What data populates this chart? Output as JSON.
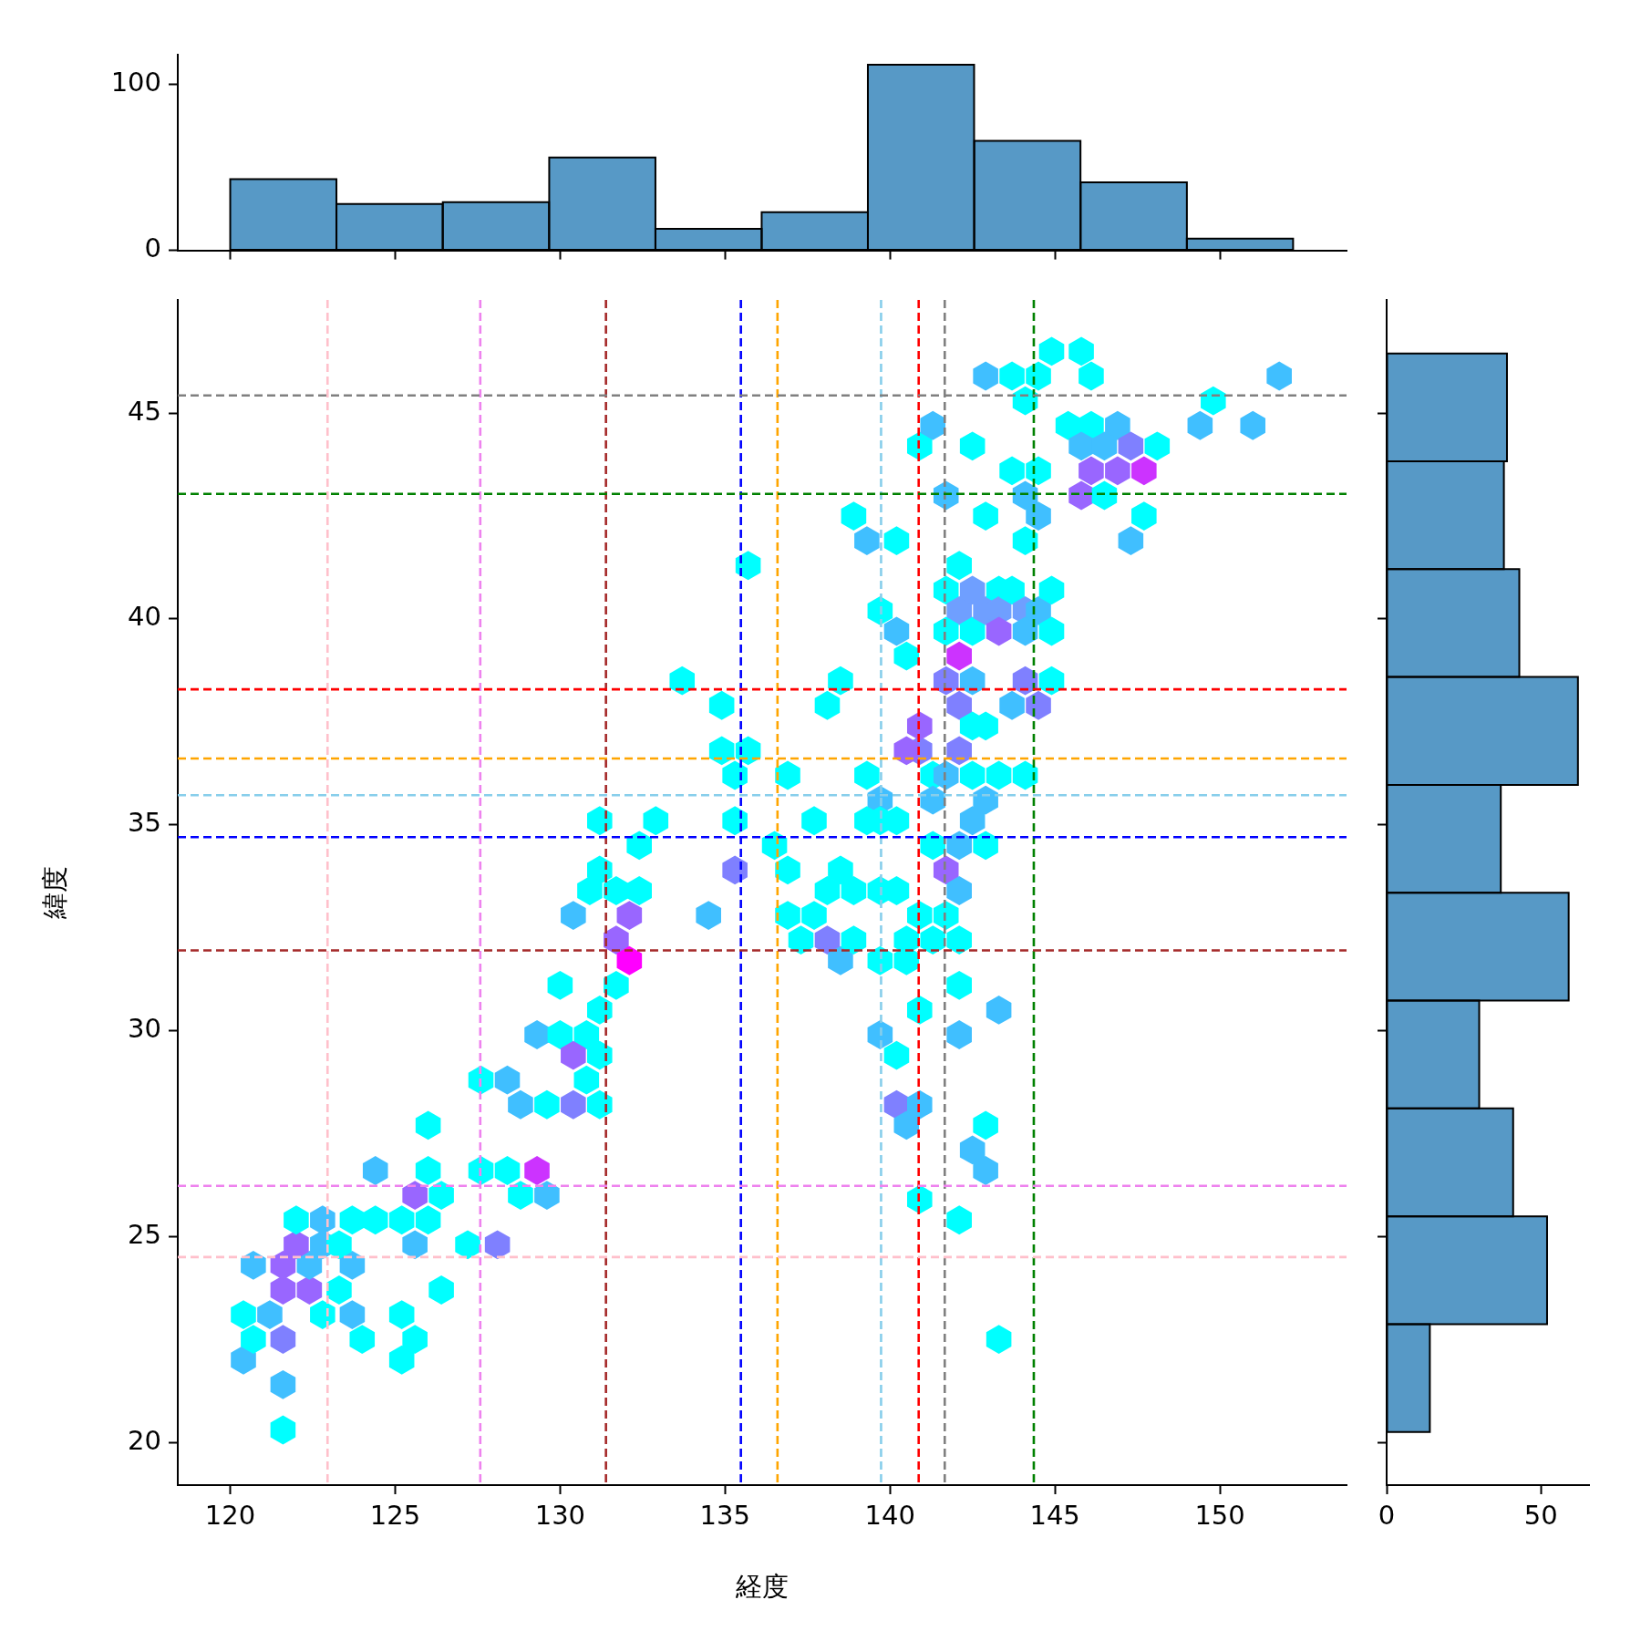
{
  "chart_data": [
    {
      "type": "histogram",
      "bins": [
        120.0,
        123.22,
        126.44,
        129.67,
        132.89,
        136.11,
        139.33,
        142.55,
        145.78,
        149.0,
        152.22
      ],
      "values": [
        43,
        28,
        29,
        56,
        13,
        23,
        112,
        66,
        41,
        7
      ],
      "color": "#5799c6",
      "xlim": [
        118.41,
        153.84
      ],
      "xticks": [
        120,
        125,
        130,
        135,
        140,
        145,
        150
      ],
      "ylim": [
        0,
        118
      ],
      "yticks": [
        0,
        100
      ],
      "tick_labels": "y"
    },
    {
      "type": "scatter",
      "xlabel": "経度",
      "ylabel": "緯度",
      "xlim": [
        118.41,
        153.84
      ],
      "ylim": [
        18.96,
        47.75
      ],
      "xticks": [
        120,
        125,
        130,
        135,
        140,
        145,
        150
      ],
      "yticks": [
        20,
        25,
        30,
        35,
        40,
        45
      ],
      "line_style": "dashed",
      "ref_lines": [
        {
          "axis": "x",
          "value": 122.95,
          "color": "#ffc0cb"
        },
        {
          "axis": "x",
          "value": 127.58,
          "color": "#ee82ee"
        },
        {
          "axis": "x",
          "value": 131.39,
          "color": "#a52a2a"
        },
        {
          "axis": "x",
          "value": 135.48,
          "color": "#0000ff"
        },
        {
          "axis": "x",
          "value": 136.59,
          "color": "#ffa500"
        },
        {
          "axis": "x",
          "value": 139.73,
          "color": "#87ceeb"
        },
        {
          "axis": "x",
          "value": 140.87,
          "color": "#ff0000"
        },
        {
          "axis": "x",
          "value": 141.66,
          "color": "#808080"
        },
        {
          "axis": "x",
          "value": 144.36,
          "color": "#008000"
        },
        {
          "axis": "y",
          "value": 45.43,
          "color": "#808080"
        },
        {
          "axis": "y",
          "value": 43.04,
          "color": "#008000"
        },
        {
          "axis": "y",
          "value": 38.29,
          "color": "#ff0000"
        },
        {
          "axis": "y",
          "value": 36.61,
          "color": "#ffa500"
        },
        {
          "axis": "y",
          "value": 35.72,
          "color": "#87ceeb"
        },
        {
          "axis": "y",
          "value": 34.7,
          "color": "#0000ff"
        },
        {
          "axis": "y",
          "value": 31.95,
          "color": "#a52a2a"
        },
        {
          "axis": "y",
          "value": 26.23,
          "color": "#ee82ee"
        },
        {
          "axis": "y",
          "value": 24.5,
          "color": "#ffc0cb"
        }
      ],
      "x": [
        121.6,
        121.6,
        120.4,
        125.2,
        120.4,
        120.7,
        121.6,
        121.2,
        124.0,
        125.2,
        125.6,
        126.4,
        122.8,
        123.7,
        121.6,
        122.4,
        123.3,
        120.7,
        121.6,
        122.4,
        123.7,
        122.0,
        122.8,
        123.3,
        122.0,
        122.8,
        123.7,
        124.4,
        125.2,
        126.0,
        125.6,
        125.6,
        126.4,
        124.4,
        126.0,
        126.0,
        127.2,
        128.1,
        127.6,
        128.4,
        129.3,
        128.8,
        129.6,
        127.6,
        128.4,
        128.8,
        129.6,
        130.4,
        129.3,
        130.0,
        130.8,
        130.4,
        131.2,
        130.8,
        131.2,
        130.0,
        131.2,
        131.7,
        131.7,
        132.1,
        132.1,
        132.4,
        131.7,
        130.9,
        130.4,
        131.2,
        131.2,
        132.4,
        132.9,
        133.7,
        134.9,
        134.5,
        134.9,
        135.3,
        135.7,
        135.3,
        135.3,
        135.7,
        136.5,
        136.9,
        136.9,
        136.9,
        137.3,
        137.7,
        138.1,
        138.5,
        138.9,
        137.7,
        138.1,
        138.5,
        138.1,
        138.5,
        138.9,
        139.7,
        140.2,
        139.3,
        139.7,
        139.7,
        140.2,
        139.3,
        139.7,
        140.2,
        140.5,
        138.9,
        139.3,
        140.2,
        139.7,
        140.5,
        140.5,
        140.9,
        141.3,
        139.7,
        140.2,
        140.2,
        140.5,
        140.9,
        140.9,
        140.9,
        140.9,
        141.3,
        140.9,
        140.9,
        140.5,
        141.3,
        141.3,
        141.7,
        141.3,
        141.7,
        142.1,
        142.1,
        141.7,
        142.1,
        142.1,
        142.1,
        142.1,
        141.7,
        142.5,
        142.9,
        142.1,
        141.7,
        142.1,
        142.5,
        142.1,
        141.7,
        142.1,
        142.5,
        141.7,
        142.5,
        142.9,
        143.3,
        143.3,
        143.7,
        144.1,
        144.5,
        144.9,
        143.3,
        144.1,
        144.9,
        142.5,
        142.9,
        142.1,
        142.5,
        142.9,
        143.3,
        144.1,
        144.1,
        144.5,
        143.7,
        144.9,
        142.5,
        142.9,
        143.3,
        142.9,
        142.5,
        142.9,
        143.3,
        142.9,
        143.7,
        144.1,
        143.7,
        144.5,
        144.1,
        144.5,
        144.1,
        144.9,
        145.8,
        146.1,
        144.5,
        145.4,
        146.1,
        146.9,
        145.8,
        146.5,
        147.3,
        146.1,
        146.9,
        147.7,
        148.1,
        145.8,
        146.5,
        147.7,
        147.3,
        149.4,
        149.8,
        151.0,
        151.8
      ],
      "values": [
        20.3,
        21.4,
        22.0,
        22.0,
        23.1,
        22.5,
        22.5,
        23.1,
        22.5,
        23.1,
        22.5,
        23.7,
        23.1,
        23.1,
        23.7,
        23.7,
        23.7,
        24.3,
        24.3,
        24.3,
        24.3,
        24.8,
        24.8,
        24.8,
        25.4,
        25.4,
        25.4,
        25.4,
        25.4,
        25.4,
        24.8,
        26.0,
        26.0,
        26.6,
        26.6,
        27.7,
        24.8,
        24.8,
        26.6,
        26.6,
        26.6,
        26.0,
        26.0,
        28.8,
        28.8,
        28.2,
        28.2,
        28.2,
        29.9,
        29.9,
        29.9,
        29.4,
        28.2,
        28.8,
        29.4,
        31.1,
        30.5,
        31.1,
        32.2,
        31.7,
        32.8,
        33.4,
        33.4,
        33.4,
        32.8,
        33.9,
        35.1,
        34.5,
        35.1,
        38.5,
        37.9,
        32.8,
        36.8,
        36.2,
        36.8,
        35.1,
        33.9,
        41.3,
        34.5,
        33.9,
        36.2,
        32.8,
        32.2,
        32.8,
        32.2,
        31.7,
        32.2,
        35.1,
        37.9,
        38.5,
        33.4,
        33.9,
        33.4,
        33.4,
        33.4,
        36.2,
        35.6,
        35.1,
        35.1,
        35.1,
        40.2,
        39.7,
        39.1,
        42.5,
        41.9,
        41.9,
        31.7,
        31.7,
        32.2,
        32.8,
        32.2,
        29.9,
        29.4,
        28.2,
        27.7,
        28.2,
        25.9,
        30.5,
        44.2,
        44.7,
        36.8,
        37.4,
        36.8,
        36.2,
        35.6,
        36.2,
        34.5,
        33.9,
        34.5,
        33.4,
        32.8,
        32.2,
        31.1,
        29.9,
        25.4,
        43.0,
        44.2,
        42.5,
        41.3,
        40.7,
        40.2,
        40.7,
        39.1,
        38.5,
        37.9,
        38.5,
        39.7,
        39.7,
        40.2,
        40.7,
        40.2,
        40.7,
        40.2,
        40.2,
        40.7,
        39.7,
        39.7,
        39.7,
        37.4,
        37.4,
        36.8,
        36.2,
        35.6,
        36.2,
        36.2,
        38.5,
        37.9,
        37.9,
        38.5,
        35.1,
        34.5,
        30.5,
        27.7,
        27.1,
        26.6,
        22.5,
        45.9,
        45.9,
        45.3,
        43.6,
        43.6,
        43.0,
        42.5,
        41.9,
        46.5,
        46.5,
        45.9,
        45.9,
        44.7,
        44.7,
        44.7,
        44.2,
        44.2,
        44.2,
        43.6,
        43.6,
        43.6,
        44.2,
        43.0,
        43.0,
        42.5,
        41.9,
        44.7,
        45.3,
        44.7,
        45.9
      ],
      "colors": [
        "#00ffff",
        "#40bfff",
        "#40bfff",
        "#00ffff",
        "#00ffff",
        "#00ffff",
        "#7f80ff",
        "#40bfff",
        "#00ffff",
        "#00ffff",
        "#00ffff",
        "#00ffff",
        "#00ffff",
        "#40bfff",
        "#9966ff",
        "#9966ff",
        "#00ffff",
        "#40bfff",
        "#9966ff",
        "#40bfff",
        "#40bfff",
        "#9966ff",
        "#40bfff",
        "#00ffff",
        "#00ffff",
        "#40bfff",
        "#00ffff",
        "#00ffff",
        "#00ffff",
        "#00ffff",
        "#40bfff",
        "#9966ff",
        "#00ffff",
        "#40bfff",
        "#00ffff",
        "#00ffff",
        "#00ffff",
        "#7f80ff",
        "#00ffff",
        "#00ffff",
        "#cc33ff",
        "#00ffff",
        "#40bfff",
        "#00ffff",
        "#40bfff",
        "#40bfff",
        "#00ffff",
        "#7f80ff",
        "#40bfff",
        "#00ffff",
        "#00ffff",
        "#9966ff",
        "#00ffff",
        "#00ffff",
        "#00ffff",
        "#00ffff",
        "#00ffff",
        "#00ffff",
        "#9966ff",
        "#ff00ff",
        "#9966ff",
        "#00ffff",
        "#00ffff",
        "#00ffff",
        "#40bfff",
        "#00ffff",
        "#00ffff",
        "#00ffff",
        "#00ffff",
        "#00ffff",
        "#00ffff",
        "#40bfff",
        "#00ffff",
        "#00ffff",
        "#00ffff",
        "#00ffff",
        "#7f80ff",
        "#00ffff",
        "#00ffff",
        "#00ffff",
        "#00ffff",
        "#00ffff",
        "#00ffff",
        "#00ffff",
        "#7f80ff",
        "#40bfff",
        "#00ffff",
        "#00ffff",
        "#00ffff",
        "#00ffff",
        "#00ffff",
        "#00ffff",
        "#00ffff",
        "#00ffff",
        "#00ffff",
        "#00ffff",
        "#40bfff",
        "#00ffff",
        "#00ffff",
        "#00ffff",
        "#00ffff",
        "#40bfff",
        "#00ffff",
        "#00ffff",
        "#40bfff",
        "#00ffff",
        "#00ffff",
        "#00ffff",
        "#00ffff",
        "#00ffff",
        "#00ffff",
        "#40bfff",
        "#00ffff",
        "#7f80ff",
        "#40bfff",
        "#40bfff",
        "#00ffff",
        "#00ffff",
        "#00ffff",
        "#40bfff",
        "#7f80ff",
        "#9966ff",
        "#9966ff",
        "#00ffff",
        "#40bfff",
        "#40bfff",
        "#00ffff",
        "#9966ff",
        "#40bfff",
        "#40bfff",
        "#00ffff",
        "#00ffff",
        "#00ffff",
        "#40bfff",
        "#00ffff",
        "#40bfff",
        "#00ffff",
        "#00ffff",
        "#00ffff",
        "#00ffff",
        "#6f9fff",
        "#6f9fff",
        "#cc33ff",
        "#7f80ff",
        "#7f80ff",
        "#40bfff",
        "#00ffff",
        "#00ffff",
        "#6f9fff",
        "#00ffff",
        "#6f9fff",
        "#00ffff",
        "#6f9fff",
        "#40bfff",
        "#00ffff",
        "#9966ff",
        "#40bfff",
        "#00ffff",
        "#00ffff",
        "#00ffff",
        "#7f80ff",
        "#00ffff",
        "#40bfff",
        "#00ffff",
        "#00ffff",
        "#7f80ff",
        "#7f80ff",
        "#40bfff",
        "#00ffff",
        "#40bfff",
        "#00ffff",
        "#40bfff",
        "#00ffff",
        "#40bfff",
        "#40bfff",
        "#00ffff",
        "#40bfff",
        "#00ffff",
        "#00ffff",
        "#00ffff",
        "#00ffff",
        "#40bfff",
        "#40bfff",
        "#00ffff",
        "#00ffff",
        "#00ffff",
        "#00ffff",
        "#00ffff",
        "#00ffff",
        "#00ffff",
        "#40bfff",
        "#40bfff",
        "#40bfff",
        "#7f80ff",
        "#9966ff",
        "#9966ff",
        "#cc33ff",
        "#00ffff",
        "#9966ff",
        "#00ffff",
        "#00ffff",
        "#40bfff",
        "#40bfff",
        "#00ffff",
        "#40bfff",
        "#40bfff"
      ]
    },
    {
      "type": "histogram",
      "orientation": "horizontal",
      "bins": [
        20.25,
        22.87,
        25.49,
        28.11,
        30.73,
        33.35,
        35.97,
        38.59,
        41.21,
        43.83,
        46.45
      ],
      "values": [
        14,
        52,
        41,
        30,
        59,
        37,
        62,
        43,
        38,
        39
      ],
      "color": "#5799c6",
      "xlim": [
        0,
        65.6
      ],
      "xticks": [
        0,
        50
      ],
      "ylim": [
        18.96,
        47.75
      ],
      "yticks": [
        20,
        25,
        30,
        35,
        40,
        45
      ],
      "tick_labels": "x"
    }
  ]
}
